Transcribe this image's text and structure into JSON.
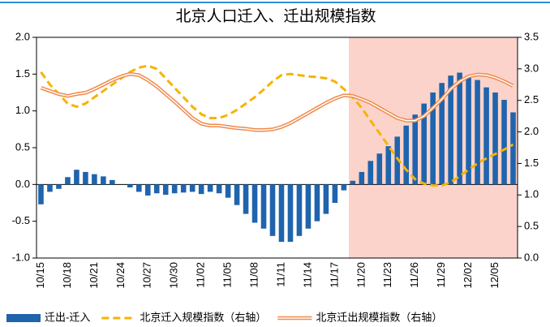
{
  "chart_data": {
    "type": "bar-line",
    "title": "北京人口迁入、迁出规模指数",
    "categories": [
      "10/15",
      null,
      null,
      "10/18",
      null,
      null,
      "10/21",
      null,
      null,
      "10/24",
      null,
      null,
      "10/27",
      null,
      null,
      "10/30",
      null,
      null,
      "11/02",
      null,
      null,
      "11/05",
      null,
      null,
      "11/08",
      null,
      null,
      "11/11",
      null,
      null,
      "11/14",
      null,
      null,
      "11/17",
      null,
      null,
      "11/20",
      null,
      null,
      "11/23",
      null,
      null,
      "11/26",
      null,
      null,
      "11/29",
      null,
      null,
      "12/02",
      null,
      null,
      "12/05",
      null,
      null
    ],
    "series": [
      {
        "name": "迁出-迁入",
        "kind": "bar",
        "color": "#1f64ad",
        "values": [
          -0.27,
          -0.1,
          -0.06,
          0.1,
          0.2,
          0.17,
          0.14,
          0.11,
          0.06,
          0.0,
          -0.04,
          -0.1,
          -0.15,
          -0.12,
          -0.14,
          -0.12,
          -0.11,
          -0.1,
          -0.13,
          -0.1,
          -0.12,
          -0.18,
          -0.28,
          -0.4,
          -0.52,
          -0.6,
          -0.7,
          -0.78,
          -0.78,
          -0.7,
          -0.6,
          -0.5,
          -0.4,
          -0.25,
          -0.08,
          0.05,
          0.17,
          0.32,
          0.42,
          0.52,
          0.65,
          0.8,
          0.95,
          1.1,
          1.25,
          1.38,
          1.48,
          1.52,
          1.48,
          1.42,
          1.32,
          1.25,
          1.15,
          0.98
        ]
      },
      {
        "name": "北京迁入规模指数（右轴）",
        "kind": "dashed",
        "axis": "y2",
        "color": "#f5b400",
        "values": [
          2.95,
          2.75,
          2.6,
          2.45,
          2.4,
          2.45,
          2.55,
          2.65,
          2.75,
          2.85,
          2.95,
          3.02,
          3.05,
          3.0,
          2.85,
          2.7,
          2.55,
          2.4,
          2.28,
          2.22,
          2.22,
          2.27,
          2.35,
          2.45,
          2.55,
          2.67,
          2.8,
          2.9,
          2.92,
          2.9,
          2.88,
          2.87,
          2.85,
          2.8,
          2.68,
          2.55,
          2.38,
          2.18,
          1.98,
          1.78,
          1.58,
          1.4,
          1.25,
          1.18,
          1.15,
          1.15,
          1.2,
          1.3,
          1.4,
          1.5,
          1.58,
          1.65,
          1.72,
          1.8
        ]
      },
      {
        "name": "北京迁出规模指数（右轴）",
        "kind": "double",
        "axis": "y2",
        "color": "#f08a4b",
        "values": [
          2.7,
          2.65,
          2.6,
          2.57,
          2.6,
          2.62,
          2.68,
          2.75,
          2.82,
          2.88,
          2.92,
          2.9,
          2.82,
          2.72,
          2.6,
          2.48,
          2.35,
          2.22,
          2.13,
          2.1,
          2.1,
          2.08,
          2.06,
          2.05,
          2.03,
          2.03,
          2.04,
          2.08,
          2.14,
          2.22,
          2.3,
          2.38,
          2.46,
          2.53,
          2.58,
          2.57,
          2.52,
          2.46,
          2.38,
          2.3,
          2.22,
          2.18,
          2.18,
          2.25,
          2.38,
          2.52,
          2.68,
          2.8,
          2.88,
          2.91,
          2.9,
          2.86,
          2.8,
          2.73
        ]
      }
    ],
    "ylim": [
      -1,
      2
    ],
    "yticks": [
      {
        "value": -1,
        "label": "-1.0"
      },
      -0.5,
      {
        "value": 0,
        "label": "0.0"
      },
      0.5,
      {
        "value": 1,
        "label": "1.0"
      },
      1.5,
      {
        "value": 2,
        "label": "2.0"
      }
    ],
    "y2lim": [
      0,
      3.5
    ],
    "y2ticks": [
      {
        "value": 0,
        "label": "0.0"
      },
      0.5,
      {
        "value": 1,
        "label": "1.0"
      },
      1.5,
      {
        "value": 2,
        "label": "2.0"
      },
      2.5,
      {
        "value": 3,
        "label": "3.0"
      },
      3.5
    ],
    "grid": false
  }
}
